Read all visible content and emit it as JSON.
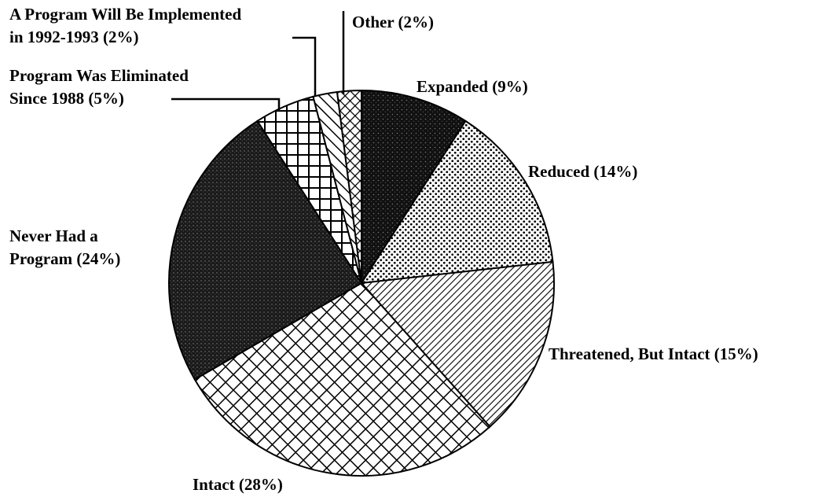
{
  "chart_data": {
    "type": "pie",
    "categories": [
      "Expanded",
      "Reduced",
      "Threatened, But Intact",
      "Intact",
      "Never Had a Program",
      "Program Was Eliminated Since 1988",
      "A Program Will Be Implemented in 1992-1993",
      "Other"
    ],
    "values": [
      9,
      14,
      15,
      28,
      24,
      5,
      2,
      2
    ],
    "value_labels": [
      "(9%)",
      "(14%)",
      "(15%)",
      "(28%)",
      "(24%)",
      "(5%)",
      "(2%)",
      "(2%)"
    ]
  }
}
